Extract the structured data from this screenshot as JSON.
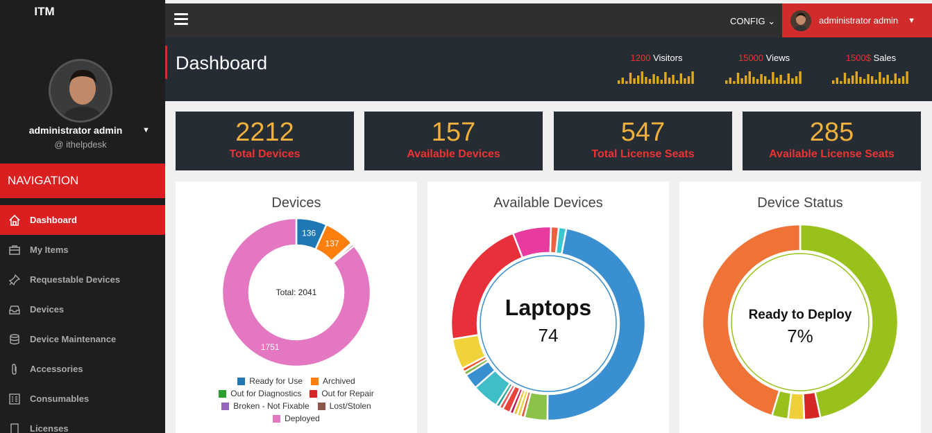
{
  "app": {
    "brand": "ITM"
  },
  "profile": {
    "name": "administrator admin",
    "handle": "@ ithelpdesk"
  },
  "nav": {
    "header": "NAVIGATION",
    "items": [
      {
        "label": "Dashboard",
        "icon": "home-icon",
        "active": true
      },
      {
        "label": "My Items",
        "icon": "briefcase-icon"
      },
      {
        "label": "Requestable Devices",
        "icon": "pin-icon"
      },
      {
        "label": "Devices",
        "icon": "inbox-icon"
      },
      {
        "label": "Device Maintenance",
        "icon": "database-icon"
      },
      {
        "label": "Accessories",
        "icon": "paperclip-icon"
      },
      {
        "label": "Consumables",
        "icon": "grid-icon"
      },
      {
        "label": "Licenses",
        "icon": "document-icon"
      }
    ]
  },
  "topbar": {
    "config_label": "CONFIG",
    "user_label": "administrator admin"
  },
  "header": {
    "title": "Dashboard",
    "stats": [
      {
        "value": "1200",
        "label": "Visitors"
      },
      {
        "value": "15000",
        "label": "Views"
      },
      {
        "value": "1500$",
        "label": "Sales"
      }
    ]
  },
  "kpis": [
    {
      "value": "2212",
      "label": "Total Devices"
    },
    {
      "value": "157",
      "label": "Available Devices"
    },
    {
      "value": "547",
      "label": "Total License Seats"
    },
    {
      "value": "285",
      "label": "Available License Seats"
    }
  ],
  "chart_data": [
    {
      "type": "pie",
      "title": "Devices",
      "center_label": "Total: 2041",
      "categories": [
        "Ready for Use",
        "Archived",
        "Out for Diagnostics",
        "Out for Repair",
        "Broken - Not Fixable",
        "Lost/Stolen",
        "Deployed"
      ],
      "values": [
        136,
        137,
        3,
        2,
        2,
        10,
        1751
      ],
      "colors": [
        "#1f77b4",
        "#ff7f0e",
        "#2ca02c",
        "#d62728",
        "#9467bd",
        "#8c564b",
        "#e377c2"
      ],
      "data_labels": [
        "136",
        "137",
        "",
        "",
        "",
        "",
        "1751"
      ]
    },
    {
      "type": "pie",
      "title": "Available Devices",
      "center_label": "Laptops",
      "center_value": "74",
      "values": [
        74,
        6,
        1,
        1,
        1,
        1,
        2,
        1,
        1,
        7,
        4,
        1,
        1,
        8,
        34,
        10,
        2,
        2
      ],
      "colors": [
        "#3a8fd0",
        "#8bc34a",
        "#e85a3a",
        "#f0d03a",
        "#e8c235",
        "#c2185b",
        "#e8433a",
        "#ef5350",
        "#26a69a",
        "#3fbec8",
        "#3a8fd0",
        "#7cb342",
        "#f4511e",
        "#f0d33a",
        "#e8303a",
        "#e83a9f",
        "#f06040",
        "#40c4d0"
      ]
    },
    {
      "type": "pie",
      "title": "Device Status",
      "center_label": "Ready to Deploy",
      "center_value": "7%",
      "values": [
        7,
        0.4,
        0.4,
        0.4,
        6.8
      ],
      "colors": [
        "#98c21b",
        "#d62728",
        "#f0d03a",
        "#98c21b",
        "#ef7336"
      ]
    }
  ]
}
